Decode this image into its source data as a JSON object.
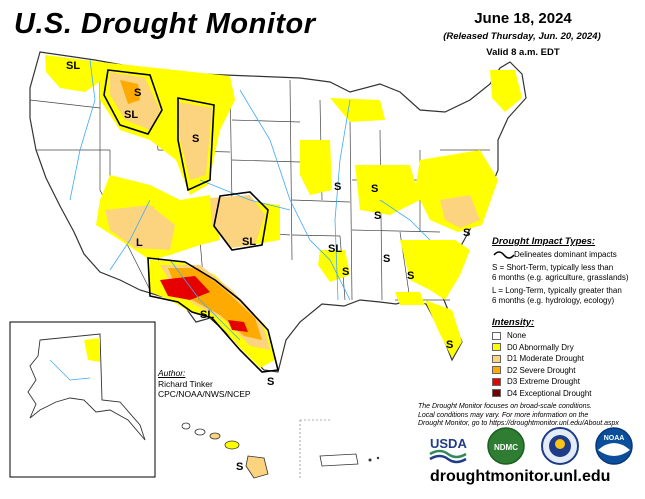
{
  "title": "U.S. Drought Monitor",
  "date": "June 18, 2024",
  "released": "(Released Thursday, Jun. 20, 2024)",
  "valid": "Valid 8 a.m. EDT",
  "impact": {
    "heading": "Drought Impact Types:",
    "delineates": "Delineates dominant impacts",
    "s_line1": "S = Short-Term, typically less than",
    "s_line2": "6 months (e.g. agriculture, grasslands)",
    "l_line1": "L = Long-Term, typically greater than",
    "l_line2": "6 months (e.g. hydrology, ecology)"
  },
  "intensity": {
    "heading": "Intensity:",
    "levels": [
      {
        "label": "None",
        "color": "#ffffff"
      },
      {
        "label": "D0 Abnormally Dry",
        "color": "#ffff00"
      },
      {
        "label": "D1 Moderate Drought",
        "color": "#fcd37f"
      },
      {
        "label": "D2 Severe Drought",
        "color": "#ffaa00"
      },
      {
        "label": "D3 Extreme Drought",
        "color": "#e60000"
      },
      {
        "label": "D4 Exceptional Drought",
        "color": "#730000"
      }
    ]
  },
  "author": {
    "heading": "Author:",
    "name": "Richard Tinker",
    "org": "CPC/NOAA/NWS/NCEP"
  },
  "note": {
    "line1": "The Drought Monitor focuses on broad-scale conditions.",
    "line2": "Local conditions may vary. For more information on the",
    "line3": "Drought Monitor, go to https://droughtmonitor.unl.edu/About.aspx"
  },
  "logos": {
    "usda": "USDA",
    "ndmc": "NDMC",
    "noaa": "NOAA"
  },
  "url": "droughtmonitor.unl.edu",
  "map_labels": [
    {
      "id": "wa",
      "text": "SL"
    },
    {
      "id": "mt",
      "text": "SL"
    },
    {
      "id": "mt2",
      "text": "S"
    },
    {
      "id": "wy",
      "text": "S"
    },
    {
      "id": "az",
      "text": "L"
    },
    {
      "id": "ks",
      "text": "SL"
    },
    {
      "id": "tx",
      "text": "SL"
    },
    {
      "id": "tx2",
      "text": "S"
    },
    {
      "id": "il",
      "text": "S"
    },
    {
      "id": "in",
      "text": "S"
    },
    {
      "id": "ky",
      "text": "S"
    },
    {
      "id": "ar",
      "text": "SL"
    },
    {
      "id": "la",
      "text": "S"
    },
    {
      "id": "al",
      "text": "S"
    },
    {
      "id": "ga",
      "text": "S"
    },
    {
      "id": "nc",
      "text": "S"
    },
    {
      "id": "fl",
      "text": "S"
    },
    {
      "id": "hi",
      "text": "S"
    }
  ]
}
